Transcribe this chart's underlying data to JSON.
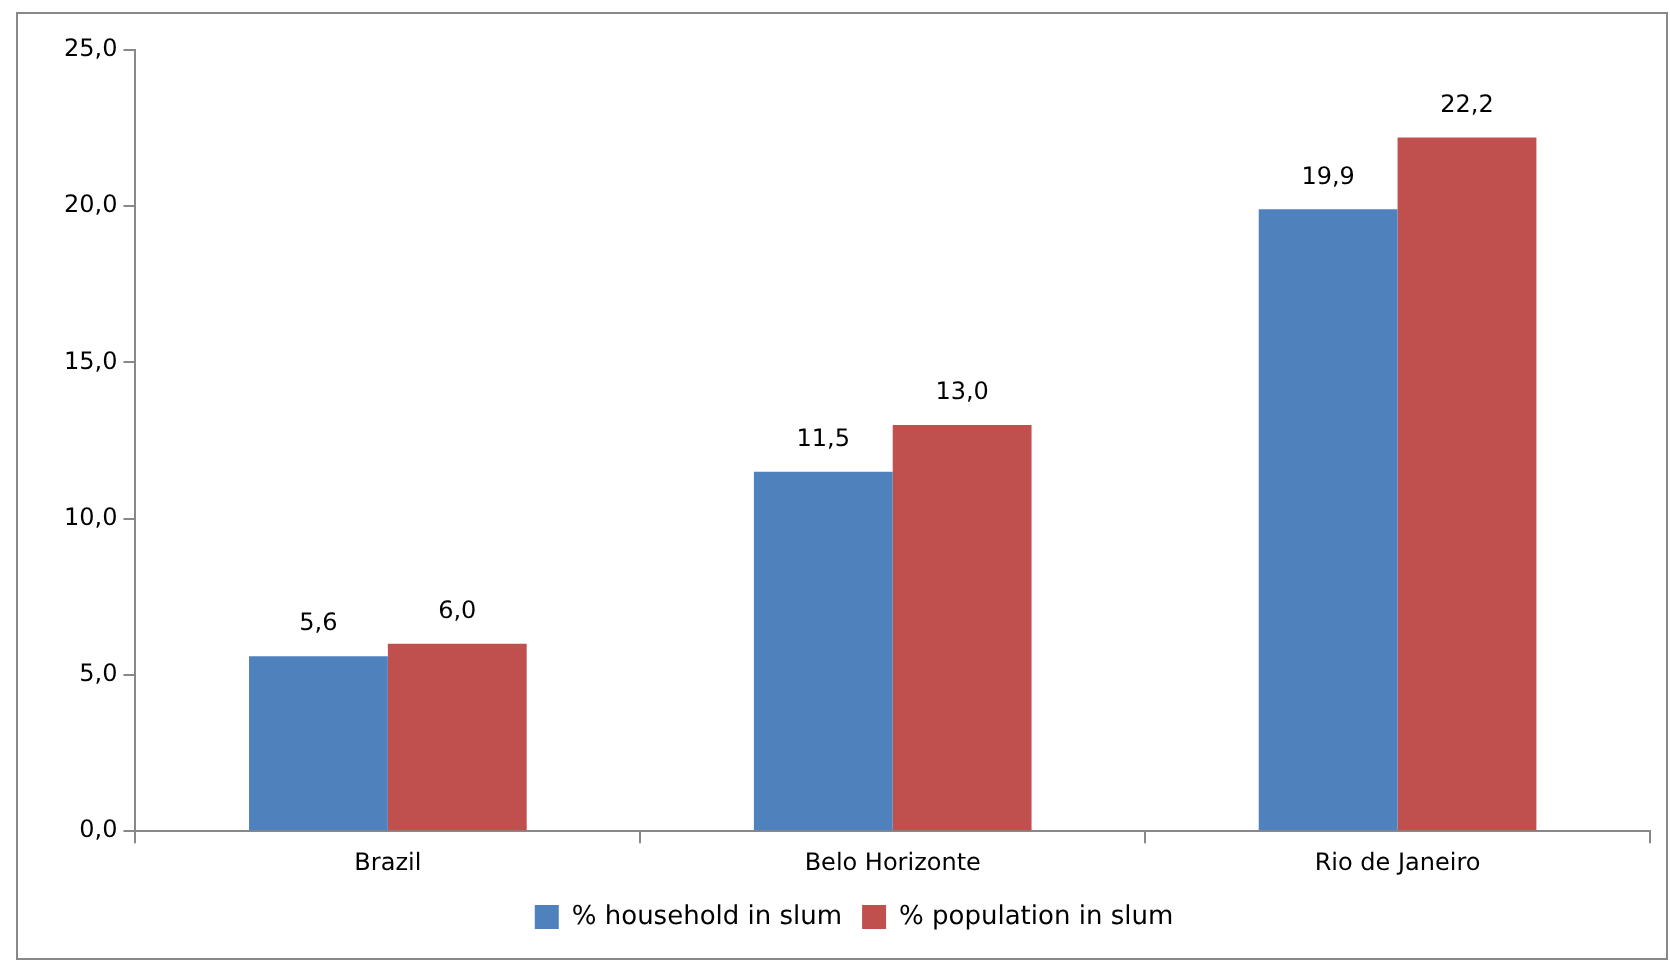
{
  "chart_data": {
    "type": "bar",
    "categories": [
      "Brazil",
      "Belo Horizonte",
      "Rio de Janeiro"
    ],
    "series": [
      {
        "name": "% household in slum",
        "color": "#4f81bd",
        "values": [
          5.6,
          11.5,
          19.9
        ],
        "value_labels": [
          "5,6",
          "11,5",
          "19,9"
        ]
      },
      {
        "name": "% population in slum",
        "color": "#c0504d",
        "values": [
          6.0,
          13.0,
          22.2
        ],
        "value_labels": [
          "6,0",
          "13,0",
          "22,2"
        ]
      }
    ],
    "ylim": [
      0,
      25
    ],
    "yticks": [
      {
        "value": 0,
        "label": "0,0"
      },
      {
        "value": 5,
        "label": "5,0"
      },
      {
        "value": 10,
        "label": "10,0"
      },
      {
        "value": 15,
        "label": "15,0"
      },
      {
        "value": 20,
        "label": "20,0"
      },
      {
        "value": 25,
        "label": "25,0"
      }
    ],
    "grid": false,
    "legend": "bottom"
  }
}
